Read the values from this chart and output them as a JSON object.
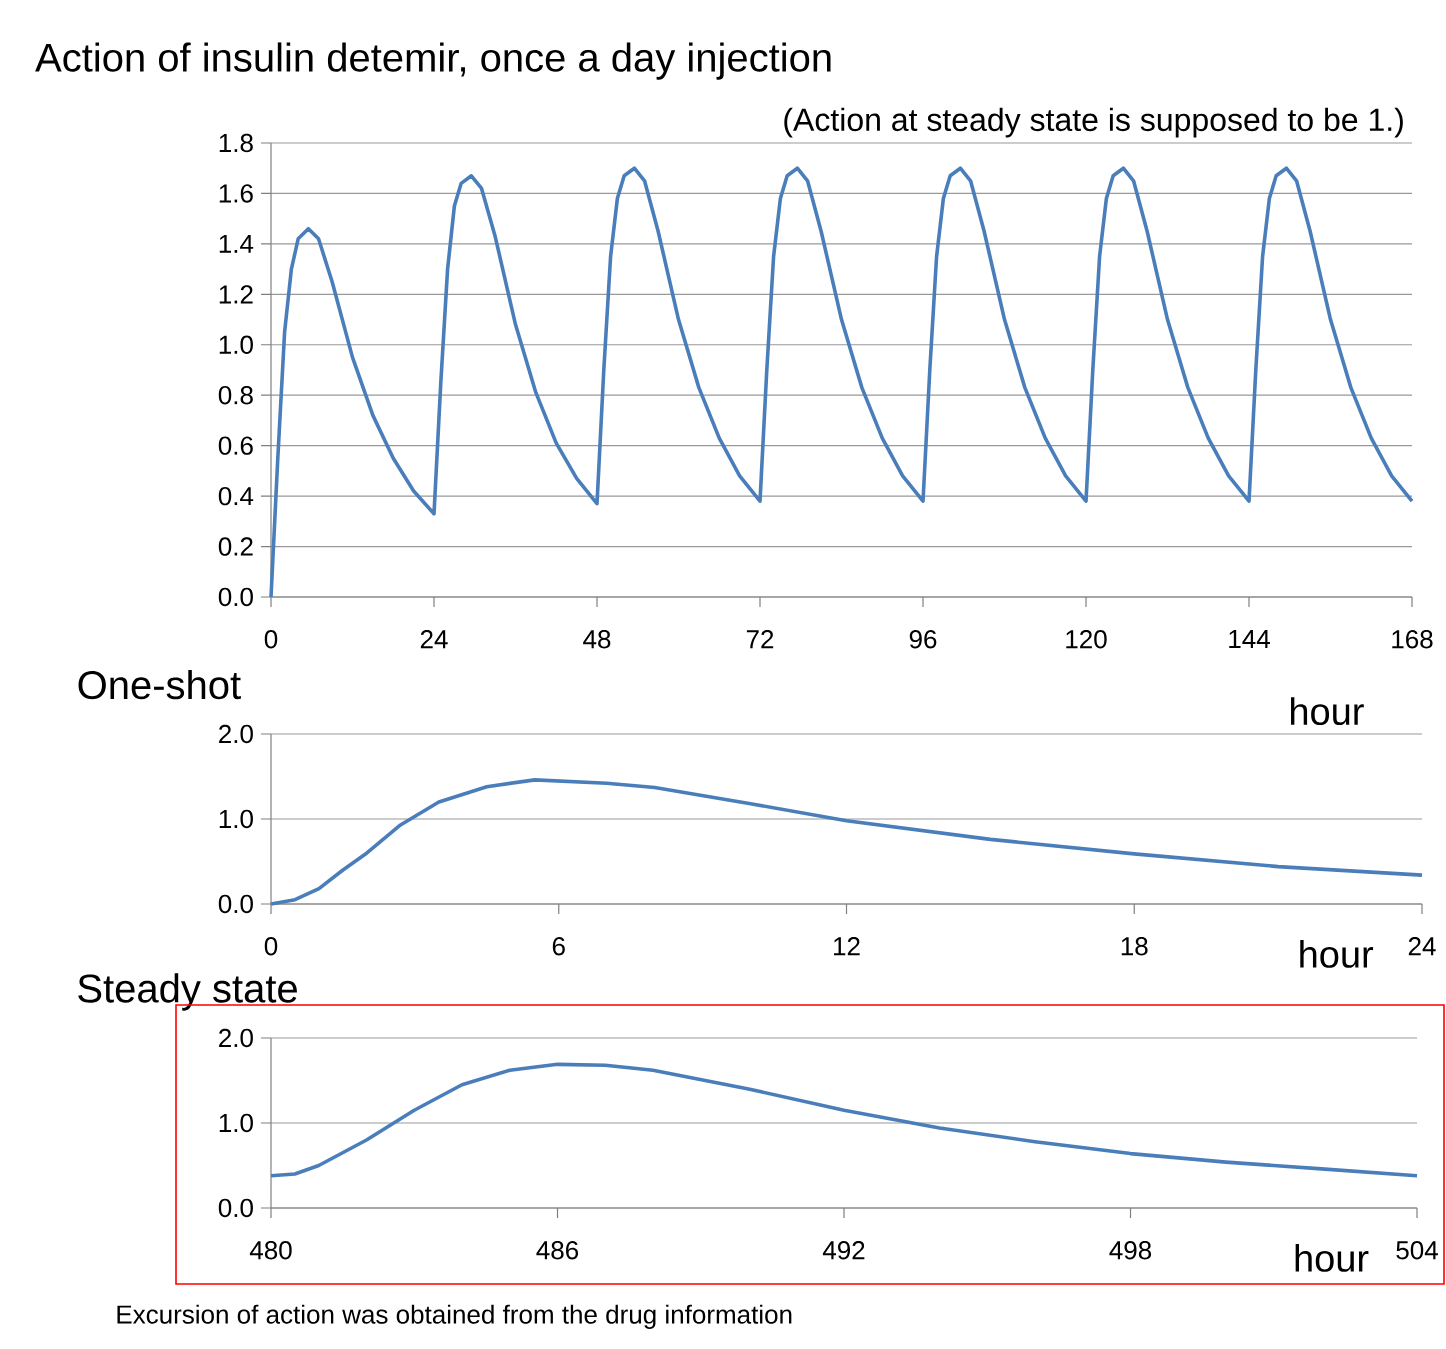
{
  "chart_data": [
    {
      "type": "line",
      "title": "Action of insulin detemir, once a day injection",
      "subtitle": "(Action at steady state is supposed to be 1.)",
      "xlabel": "hour",
      "x": [
        0,
        1,
        2,
        3,
        4,
        5.5,
        7,
        9,
        12,
        15,
        18,
        21,
        24,
        25,
        26,
        27,
        28,
        29.5,
        31,
        33,
        36,
        39,
        42,
        45,
        48,
        49,
        50,
        51,
        52,
        53.5,
        55,
        57,
        60,
        63,
        66,
        69,
        72,
        73,
        74,
        75,
        76,
        77.5,
        79,
        81,
        84,
        87,
        90,
        93,
        96,
        97,
        98,
        99,
        100,
        101.5,
        103,
        105,
        108,
        111,
        114,
        117,
        120,
        121,
        122,
        123,
        124,
        125.5,
        127,
        129,
        132,
        135,
        138,
        141,
        144,
        145,
        146,
        147,
        148,
        149.5,
        151,
        153,
        156,
        159,
        162,
        165,
        168
      ],
      "series": [
        {
          "color": "#4a7ebb",
          "values": [
            0,
            0.55,
            1.05,
            1.3,
            1.42,
            1.46,
            1.42,
            1.25,
            0.95,
            0.72,
            0.55,
            0.42,
            0.33,
            0.85,
            1.3,
            1.55,
            1.64,
            1.67,
            1.62,
            1.43,
            1.08,
            0.81,
            0.61,
            0.47,
            0.37,
            0.9,
            1.35,
            1.58,
            1.67,
            1.7,
            1.65,
            1.45,
            1.1,
            0.83,
            0.63,
            0.48,
            0.38,
            0.9,
            1.35,
            1.58,
            1.67,
            1.7,
            1.65,
            1.45,
            1.1,
            0.83,
            0.63,
            0.48,
            0.38,
            0.9,
            1.35,
            1.58,
            1.67,
            1.7,
            1.65,
            1.45,
            1.1,
            0.83,
            0.63,
            0.48,
            0.38,
            0.9,
            1.35,
            1.58,
            1.67,
            1.7,
            1.65,
            1.45,
            1.1,
            0.83,
            0.63,
            0.48,
            0.38,
            0.9,
            1.35,
            1.58,
            1.67,
            1.7,
            1.65,
            1.45,
            1.1,
            0.83,
            0.63,
            0.48,
            0.38
          ]
        }
      ],
      "xlim": [
        0,
        168
      ],
      "xticks": [
        0,
        24,
        48,
        72,
        96,
        120,
        144,
        168
      ],
      "ylim": [
        0,
        1.8
      ],
      "yticks": [
        {
          "value": 0,
          "label": "0.0"
        },
        {
          "value": 0.2,
          "label": "0.2"
        },
        {
          "value": 0.4,
          "label": "0.4"
        },
        {
          "value": 0.6,
          "label": "0.6"
        },
        {
          "value": 0.8,
          "label": "0.8"
        },
        {
          "value": 1.0,
          "label": "1.0"
        },
        {
          "value": 1.2,
          "label": "1.2"
        },
        {
          "value": 1.4,
          "label": "1.4"
        },
        {
          "value": 1.6,
          "label": "1.6"
        },
        {
          "value": 1.8,
          "label": "1.8"
        }
      ],
      "grid": "y",
      "marker": "none",
      "line_style": "solid"
    },
    {
      "type": "line",
      "title": "One-shot",
      "xlabel": "hour",
      "x": [
        0,
        0.5,
        1,
        1.5,
        2,
        2.7,
        3.5,
        4.5,
        5.5,
        7,
        8,
        10,
        12,
        15,
        18,
        21,
        24
      ],
      "series": [
        {
          "color": "#4a7ebb",
          "values": [
            0,
            0.05,
            0.18,
            0.4,
            0.6,
            0.93,
            1.2,
            1.38,
            1.46,
            1.42,
            1.37,
            1.18,
            0.98,
            0.76,
            0.59,
            0.44,
            0.34
          ]
        }
      ],
      "xlim": [
        0,
        24
      ],
      "xticks": [
        0,
        6,
        12,
        18,
        24
      ],
      "ylim": [
        0,
        2
      ],
      "yticks": [
        {
          "value": 0,
          "label": "0.0"
        },
        {
          "value": 1,
          "label": "1.0"
        },
        {
          "value": 2,
          "label": "2.0"
        }
      ],
      "grid": "y",
      "marker": "none",
      "line_style": "solid"
    },
    {
      "type": "line",
      "title": "Steady state",
      "xlabel": "hour",
      "x": [
        480,
        480.5,
        481,
        482,
        483,
        484,
        485,
        486,
        487,
        488,
        490,
        492,
        494,
        496,
        498,
        500,
        502,
        504
      ],
      "series": [
        {
          "color": "#4a7ebb",
          "values": [
            0.38,
            0.4,
            0.5,
            0.8,
            1.15,
            1.45,
            1.62,
            1.69,
            1.68,
            1.62,
            1.4,
            1.15,
            0.94,
            0.78,
            0.64,
            0.54,
            0.46,
            0.38
          ]
        }
      ],
      "xlim": [
        480,
        504
      ],
      "xticks": [
        480,
        486,
        492,
        498,
        504
      ],
      "ylim": [
        0,
        2
      ],
      "yticks": [
        {
          "value": 0,
          "label": "0.0"
        },
        {
          "value": 1,
          "label": "1.0"
        },
        {
          "value": 2,
          "label": "2.0"
        }
      ],
      "grid": "y",
      "marker": "none",
      "line_style": "solid",
      "annotations": [
        "Excursion of action was obtained from the drug information"
      ]
    }
  ]
}
